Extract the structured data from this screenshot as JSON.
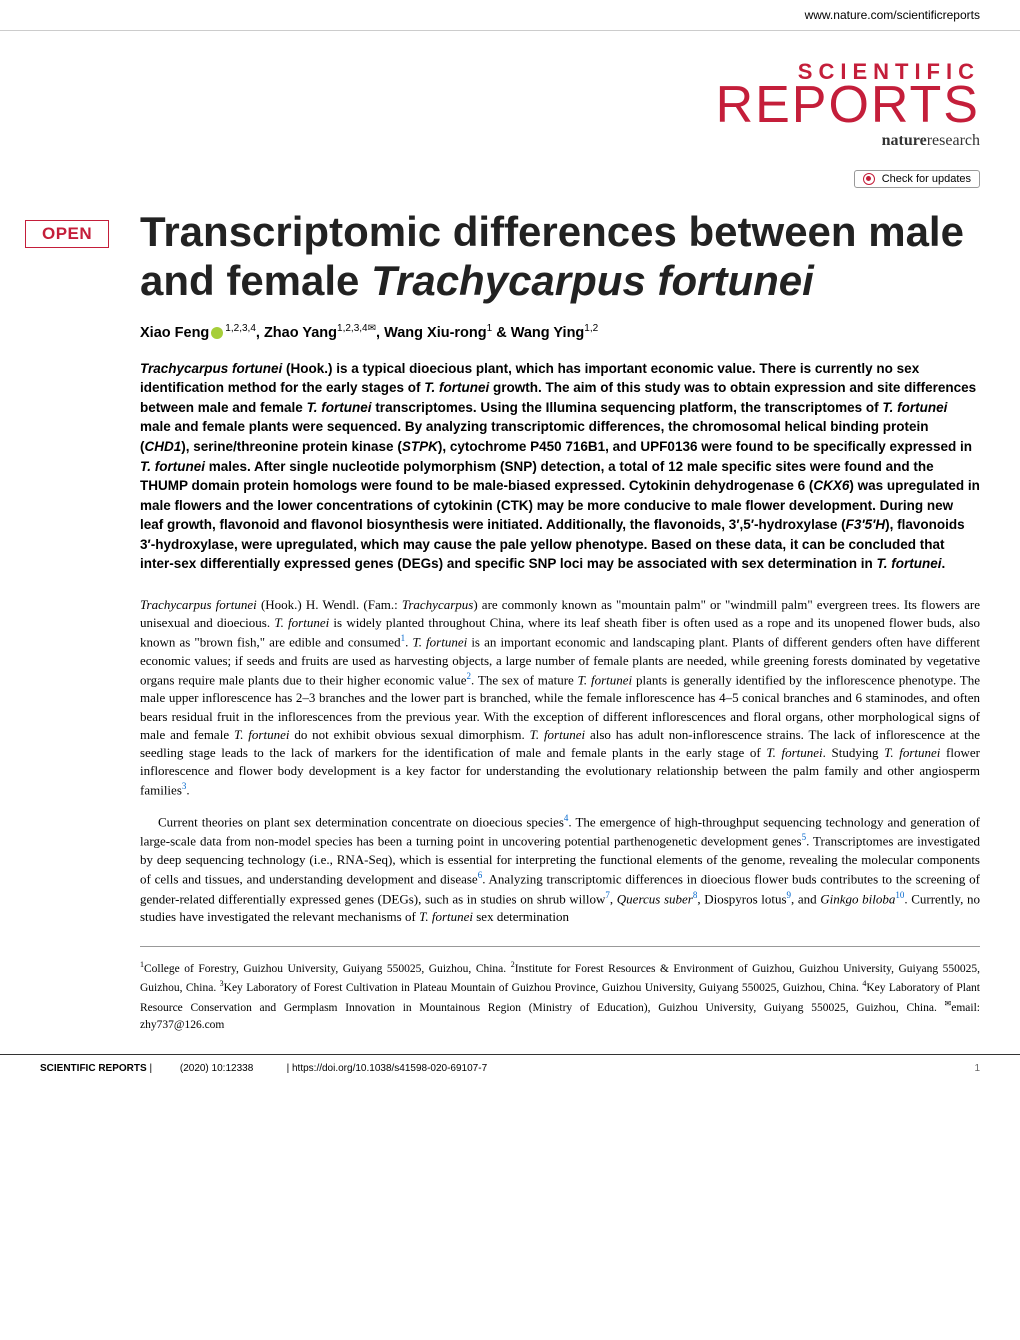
{
  "header": {
    "url": "www.nature.com/scientificreports"
  },
  "logo": {
    "scientific": "SCIENTIFIC",
    "reports": "REPORTS",
    "nature_bold": "nature",
    "nature_rest": "research"
  },
  "check_updates": "Check for updates",
  "open_badge": "OPEN",
  "title": {
    "line1": "Transcriptomic differences between male and female",
    "line2": "Trachycarpus fortunei"
  },
  "authors": {
    "a1_name": "Xiao Feng",
    "a1_sup": "1,2,3,4",
    "a2_name": "Zhao Yang",
    "a2_sup": "1,2,3,4",
    "a3_name": "Wang Xiu-rong",
    "a3_sup": "1",
    "a4_name": "Wang Ying",
    "a4_sup": "1,2"
  },
  "abstract": {
    "s1_italic": "Trachycarpus fortunei",
    "s1_rest": " (Hook.) is a typical dioecious plant, which has important economic value. There is currently no sex identification method for the early stages of ",
    "s2_italic": "T. fortunei",
    "s2_rest": " growth. The aim of this study was to obtain expression and site differences between male and female ",
    "s3_italic": "T. fortunei",
    "s3_rest": " transcriptomes. Using the Illumina sequencing platform, the transcriptomes of ",
    "s4_italic": "T. fortunei",
    "s4_rest": " male and female plants were sequenced. By analyzing transcriptomic differences, the chromosomal helical binding protein (",
    "s5_italic": "CHD1",
    "s5_rest": "), serine/threonine protein kinase (",
    "s6_italic": "STPK",
    "s6_rest": "), cytochrome P450 716B1, and UPF0136 were found to be specifically expressed in ",
    "s7_italic": "T. fortunei",
    "s7_rest": " males. After single nucleotide polymorphism (SNP) detection, a total of 12 male specific sites were found and the THUMP domain protein homologs were found to be male-biased expressed. Cytokinin dehydrogenase 6 (",
    "s8_italic": "CKX6",
    "s8_rest": ") was upregulated in male flowers and the lower concentrations of cytokinin (CTK) may be more conducive to male flower development. During new leaf growth, flavonoid and flavonol biosynthesis were initiated. Additionally, the flavonoids, 3′,5′-hydroxylase (",
    "s9_italic": "F3′5′H",
    "s9_rest": "), flavonoids 3′-hydroxylase, were upregulated, which may cause the pale yellow phenotype. Based on these data, it can be concluded that inter-sex differentially expressed genes (DEGs) and specific SNP loci may be associated with sex determination in ",
    "s10_italic": "T. fortunei",
    "s10_rest": "."
  },
  "body": {
    "p1": {
      "t1_italic": "Trachycarpus fortunei",
      "t1": " (Hook.) H. Wendl. (Fam.: ",
      "t2_italic": "Trachycarpus",
      "t2": ") are commonly known as \"mountain palm\" or \"windmill palm\" evergreen trees. Its flowers are unisexual and dioecious. ",
      "t3_italic": "T. fortunei",
      "t3": " is widely planted throughout China, where its leaf sheath fiber is often used as a rope and its unopened flower buds, also known as \"brown fish,\" are edible and consumed",
      "r1": "1",
      "t4": ". ",
      "t4_italic": "T. fortunei",
      "t5": " is an important economic and landscaping plant. Plants of different genders often have different economic values; if seeds and fruits are used as harvesting objects, a large number of female plants are needed, while greening forests dominated by vegetative organs require male plants due to their higher economic value",
      "r2": "2",
      "t6": ". The sex of mature ",
      "t6_italic": "T. fortunei",
      "t7": " plants is generally identified by the inflorescence phenotype. The male upper inflorescence has 2–3 branches and the lower part is branched, while the female inflorescence has 4–5 conical branches and 6 staminodes, and often bears residual fruit in the inflorescences from the previous year. With the exception of different inflorescences and floral organs, other morphological signs of male and female ",
      "t7_italic": "T. fortunei",
      "t8": " do not exhibit obvious sexual dimorphism. ",
      "t8_italic": "T. fortunei",
      "t9": " also has adult non-inflorescence strains. The lack of inflorescence at the seedling stage leads to the lack of markers for the identification of male and female plants in the early stage of ",
      "t9_italic": "T. fortunei",
      "t10": ". Studying ",
      "t10_italic": "T. fortunei",
      "t11": " flower inflorescence and flower body development is a key factor for understanding the evolutionary relationship between the palm family and other angiosperm families",
      "r3": "3",
      "t12": "."
    },
    "p2": {
      "t1": "Current theories on plant sex determination concentrate on dioecious species",
      "r1": "4",
      "t2": ". The emergence of high-throughput sequencing technology and generation of large-scale data from non-model species has been a turning point in uncovering potential parthenogenetic development genes",
      "r2": "5",
      "t3": ". Transcriptomes are investigated by deep sequencing technology (i.e., RNA-Seq), which is essential for interpreting the functional elements of the genome, revealing the molecular components of cells and tissues, and understanding development and disease",
      "r3": "6",
      "t4": ". Analyzing transcriptomic differences in dioecious flower buds contributes to the screening of gender-related differentially expressed genes (DEGs), such as in studies on shrub willow",
      "r4": "7",
      "t5": ", ",
      "t5_italic": "Quercus suber",
      "r5": "8",
      "t6": ", Diospyros lotus",
      "r6": "9",
      "t7": ", and ",
      "t7_italic": "Ginkgo biloba",
      "r7": "10",
      "t8": ". Currently, no studies have investigated the relevant mechanisms of ",
      "t8_italic": "T. fortunei",
      "t9": " sex determination"
    }
  },
  "affiliations": {
    "text": "College of Forestry, Guizhou University, Guiyang 550025, Guizhou, China. ",
    "a2": "Institute for Forest Resources & Environment of Guizhou, Guizhou University, Guiyang 550025, Guizhou, China. ",
    "a3": "Key Laboratory of Forest Cultivation in Plateau Mountain of Guizhou Province, Guizhou University, Guiyang 550025, Guizhou, China. ",
    "a4": "Key Laboratory of Plant Resource Conservation and Germplasm Innovation in Mountainous Region (Ministry of Education), Guizhou University, Guiyang 550025, Guizhou, China. ",
    "email_label": "email: ",
    "email": "zhy737@126.com"
  },
  "footer": {
    "journal": "SCIENTIFIC REPORTS",
    "sep": " | ",
    "citation": "(2020) 10:12338",
    "doi": "| https://doi.org/10.1038/s41598-020-69107-7",
    "page": "1"
  },
  "colors": {
    "brand_red": "#c41e3a",
    "link_blue": "#0066cc",
    "orcid_green": "#a6ce39"
  }
}
